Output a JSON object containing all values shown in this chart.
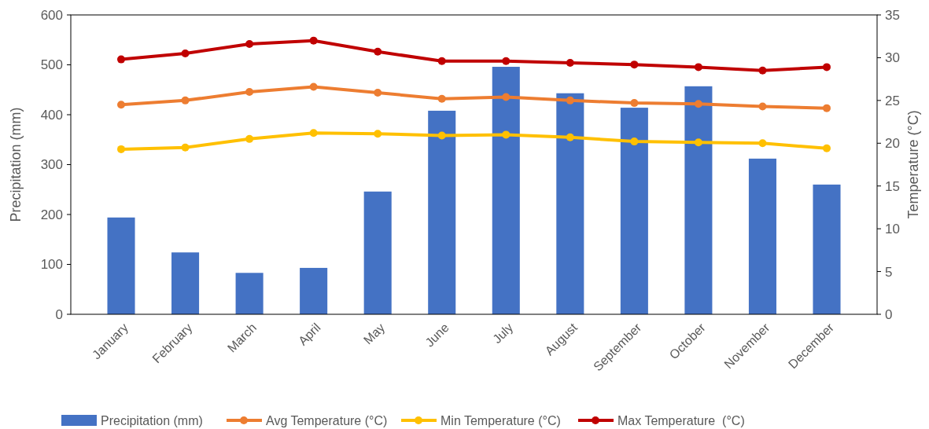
{
  "chart_data": {
    "type": "bar",
    "ylabel": "Precipitation (mm)",
    "y2label": "Temperature (°C)",
    "categories": [
      "January",
      "February",
      "March",
      "April",
      "May",
      "June",
      "July",
      "August",
      "September",
      "October",
      "November",
      "December"
    ],
    "series": [
      {
        "name": "Precipitation (mm)",
        "color": "#4472c4",
        "values": [
          194,
          124,
          83,
          93,
          246,
          408,
          496,
          443,
          414,
          457,
          312,
          260
        ]
      },
      {
        "name": "Avg Temperature (°C)",
        "type": "line",
        "axis": "y2",
        "color": "#ed7d31",
        "values": [
          24.5,
          25.0,
          26.0,
          26.6,
          25.9,
          25.2,
          25.4,
          25.0,
          24.7,
          24.6,
          24.3,
          24.1
        ]
      },
      {
        "name": "Min Temperature (°C)",
        "type": "line",
        "axis": "y2",
        "color": "#ffc000",
        "values": [
          19.3,
          19.5,
          20.5,
          21.2,
          21.1,
          20.9,
          21.0,
          20.7,
          20.2,
          20.1,
          20.0,
          19.4
        ]
      },
      {
        "name": "Max Temperature  (°C)",
        "type": "line",
        "axis": "y2",
        "color": "#c00000",
        "values": [
          29.8,
          30.5,
          31.6,
          32.0,
          30.7,
          29.6,
          29.6,
          29.4,
          29.2,
          28.9,
          28.5,
          28.9
        ]
      }
    ],
    "ylim": [
      0,
      600
    ],
    "yticks": [
      0,
      100,
      200,
      300,
      400,
      500,
      600
    ],
    "y2lim": [
      0,
      35
    ],
    "y2ticks": [
      0,
      5,
      10,
      15,
      20,
      25,
      30,
      35
    ],
    "marker": "circle",
    "legend": "bottom",
    "grid": false
  }
}
